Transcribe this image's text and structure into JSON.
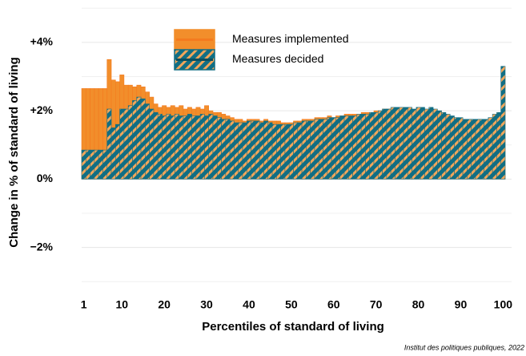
{
  "chart_data": {
    "type": "bar",
    "x_label": "Percentiles of standard of living",
    "y_label": "Change in % of standard of living",
    "caption": "Institut des politiques publiques, 2022",
    "xlim": [
      0.5,
      100.5
    ],
    "xticks": [
      1,
      10,
      20,
      30,
      40,
      50,
      60,
      70,
      80,
      90,
      100
    ],
    "ylim": [
      -3.3,
      5.1
    ],
    "yticks": [
      {
        "value": -2,
        "label": "−2%"
      },
      {
        "value": 0,
        "label": "0%"
      },
      {
        "value": 2,
        "label": "+2%"
      },
      {
        "value": 4,
        "label": "+4%"
      }
    ],
    "minor_yticks": [
      -3,
      -1,
      1,
      3,
      5
    ],
    "grid": true,
    "series": [
      {
        "name": "Measures implemented",
        "color": "#f28e2b",
        "values": [
          2.65,
          2.65,
          2.65,
          2.65,
          2.65,
          2.65,
          3.5,
          2.9,
          2.85,
          3.05,
          2.75,
          2.75,
          2.7,
          2.75,
          2.7,
          2.55,
          2.4,
          2.2,
          2.1,
          2.15,
          2.1,
          2.15,
          2.1,
          2.15,
          2.05,
          2.1,
          2.05,
          2.1,
          2.05,
          2.15,
          2.0,
          1.95,
          1.95,
          1.9,
          1.85,
          1.8,
          1.75,
          1.75,
          1.7,
          1.75,
          1.75,
          1.75,
          1.7,
          1.75,
          1.7,
          1.7,
          1.7,
          1.65,
          1.65,
          1.65,
          1.7,
          1.7,
          1.75,
          1.75,
          1.75,
          1.8,
          1.8,
          1.8,
          1.85,
          1.8,
          1.85,
          1.85,
          1.9,
          1.9,
          1.9,
          1.9,
          1.95,
          1.95,
          1.95,
          2.0,
          2.0,
          2.05,
          2.05,
          2.05,
          2.0,
          2.0,
          1.95,
          1.9,
          1.85,
          1.8,
          1.75,
          1.7,
          1.65,
          1.6,
          1.55,
          1.5,
          1.4,
          1.35,
          1.3,
          1.3,
          1.3,
          1.3,
          1.25,
          1.25,
          1.25,
          1.25,
          1.3,
          1.35,
          1.5,
          3.0
        ]
      },
      {
        "name": "Measures decided",
        "color": "#116e84",
        "values": [
          0.85,
          0.85,
          0.85,
          0.85,
          0.85,
          0.85,
          2.05,
          1.5,
          1.6,
          2.05,
          2.05,
          2.15,
          2.3,
          2.4,
          2.35,
          2.2,
          2.05,
          1.95,
          1.9,
          1.85,
          1.9,
          1.85,
          1.9,
          1.85,
          1.85,
          1.9,
          1.85,
          1.85,
          1.9,
          1.85,
          1.9,
          1.85,
          1.8,
          1.75,
          1.75,
          1.7,
          1.65,
          1.65,
          1.65,
          1.7,
          1.7,
          1.7,
          1.65,
          1.7,
          1.65,
          1.6,
          1.6,
          1.6,
          1.6,
          1.6,
          1.65,
          1.65,
          1.7,
          1.7,
          1.7,
          1.75,
          1.75,
          1.75,
          1.8,
          1.8,
          1.8,
          1.85,
          1.85,
          1.85,
          1.85,
          1.9,
          1.9,
          1.9,
          1.95,
          1.95,
          2.0,
          2.05,
          2.05,
          2.1,
          2.1,
          2.1,
          2.1,
          2.1,
          2.05,
          2.1,
          2.1,
          2.05,
          2.1,
          2.05,
          2.0,
          1.95,
          1.9,
          1.85,
          1.8,
          1.8,
          1.75,
          1.75,
          1.75,
          1.75,
          1.75,
          1.75,
          1.8,
          1.9,
          1.95,
          3.3
        ]
      }
    ]
  }
}
